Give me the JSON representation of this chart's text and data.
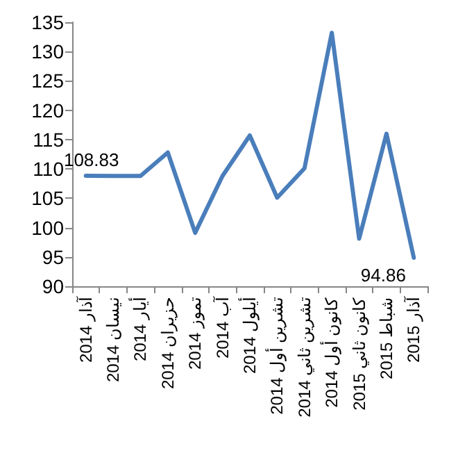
{
  "chart_data": {
    "type": "line",
    "categories": [
      "آذار 2014",
      "نيسان 2014",
      "أيار 2014",
      "حزيران 2014",
      "تموز 2014",
      "آب 2014",
      "أيلول 2014",
      "تشرين أول 2014",
      "تشرين ثاني 2014",
      "كانون أول 2014",
      "كانون ثاني 2015",
      "شباط 2015",
      "آذار 2015"
    ],
    "series": [
      {
        "color": "#4a7ebb",
        "values": [
          108.83,
          108.8,
          108.8,
          112.8,
          99.1,
          108.8,
          115.7,
          105.1,
          110.1,
          133.2,
          98.1,
          116,
          94.86
        ],
        "value_labels": [
          "108.83",
          null,
          null,
          null,
          null,
          null,
          null,
          null,
          null,
          null,
          null,
          null,
          "94.86"
        ]
      }
    ],
    "ylim": [
      90,
      135
    ],
    "yticks": [
      90,
      95,
      100,
      105,
      110,
      115,
      120,
      125,
      130,
      135
    ],
    "grid": false,
    "marker": "none",
    "line_style": "solid"
  }
}
